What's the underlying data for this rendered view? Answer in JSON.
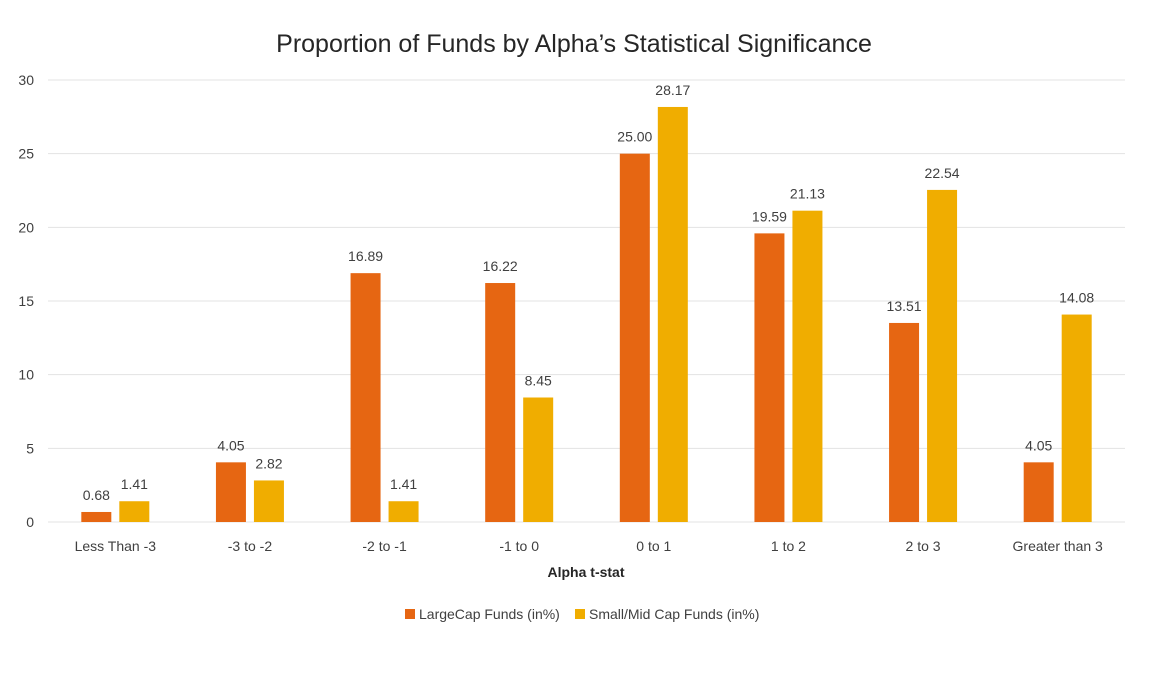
{
  "chart_data": {
    "type": "bar",
    "title": "Proportion of Funds by Alpha’s Statistical Significance",
    "xlabel": "Alpha t-stat",
    "ylabel": "",
    "ylim": [
      0,
      30
    ],
    "yticks": [
      0,
      5,
      10,
      15,
      20,
      25,
      30
    ],
    "grid": true,
    "legend_position": "bottom",
    "categories": [
      "Less Than -3",
      "-3 to -2",
      "-2 to -1",
      "-1 to 0",
      "0 to 1",
      "1 to 2",
      "2 to 3",
      "Greater than 3"
    ],
    "series": [
      {
        "name": "LargeCap Funds (in%)",
        "color": "#e66612",
        "values": [
          0.68,
          4.05,
          16.89,
          16.22,
          25.0,
          19.59,
          13.51,
          4.05
        ],
        "labels": [
          "0.68",
          "4.05",
          "16.89",
          "16.22",
          "25.00",
          "19.59",
          "13.51",
          "4.05"
        ]
      },
      {
        "name": "Small/Mid Cap Funds (in%)",
        "color": "#f0ad00",
        "values": [
          1.41,
          2.82,
          1.41,
          8.45,
          28.17,
          21.13,
          22.54,
          14.08
        ],
        "labels": [
          "1.41",
          "2.82",
          "1.41",
          "8.45",
          "28.17",
          "21.13",
          "22.54",
          "14.08"
        ]
      }
    ]
  }
}
